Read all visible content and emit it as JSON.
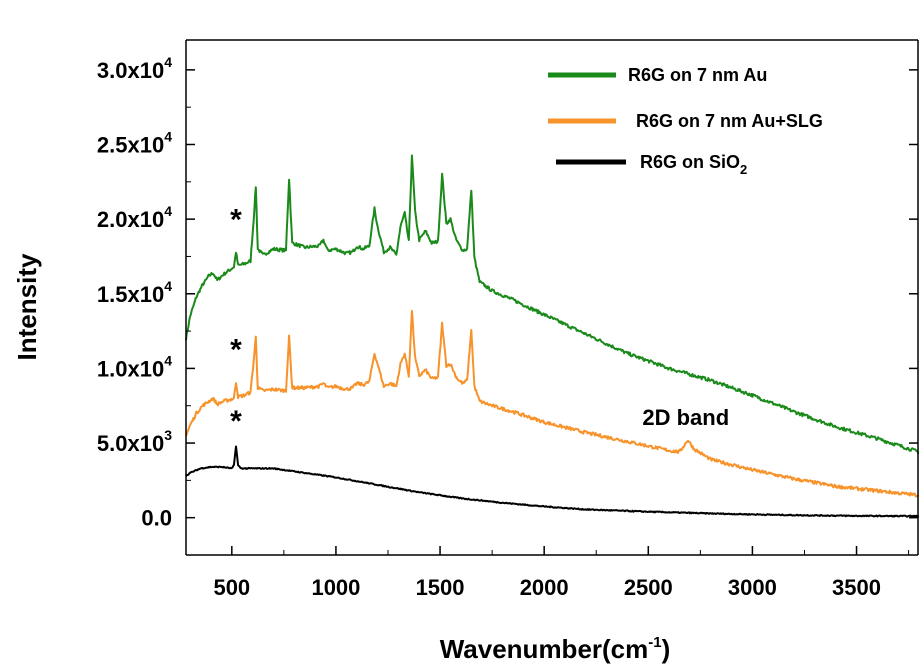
{
  "chart_data": {
    "type": "line",
    "xlabel": "Wavenumber(cm",
    "xlabel_sup": "-1",
    "xlabel_suffix": ")",
    "ylabel": "Intensity",
    "xlim": [
      280,
      3800
    ],
    "ylim": [
      -2500,
      32000
    ],
    "x_ticks": [
      500,
      1000,
      1500,
      2000,
      2500,
      3000,
      3500
    ],
    "x_tick_labels": [
      "500",
      "1000",
      "1500",
      "2000",
      "2500",
      "3000",
      "3500"
    ],
    "y_ticks": [
      0,
      5000,
      10000,
      15000,
      20000,
      25000,
      30000
    ],
    "y_tick_labels": [
      {
        "mant": "0.0",
        "exp": ""
      },
      {
        "mant": "5.0x10",
        "exp": "3"
      },
      {
        "mant": "1.0x10",
        "exp": "4"
      },
      {
        "mant": "1.5x10",
        "exp": "4"
      },
      {
        "mant": "2.0x10",
        "exp": "4"
      },
      {
        "mant": "2.5x10",
        "exp": "4"
      },
      {
        "mant": "3.0x10",
        "exp": "4"
      }
    ],
    "grid": false,
    "legend_position": "top-right",
    "series": [
      {
        "name": "R6G on  7 nm Au",
        "color": "#1a8a1a",
        "x": [
          280,
          300,
          330,
          360,
          390,
          410,
          430,
          460,
          490,
          510,
          520,
          530,
          560,
          590,
          605,
          615,
          625,
          650,
          700,
          760,
          775,
          790,
          850,
          920,
          940,
          960,
          1000,
          1050,
          1080,
          1100,
          1130,
          1160,
          1185,
          1200,
          1230,
          1260,
          1290,
          1310,
          1330,
          1350,
          1365,
          1380,
          1400,
          1430,
          1460,
          1490,
          1510,
          1530,
          1550,
          1575,
          1590,
          1610,
          1630,
          1650,
          1665,
          1690,
          1750,
          1850,
          2000,
          2200,
          2400,
          2600,
          2700,
          2800,
          3000,
          3200,
          3400,
          3600,
          3800
        ],
        "y": [
          12000,
          13500,
          14800,
          15600,
          16200,
          16400,
          15900,
          16300,
          16600,
          16800,
          17800,
          16900,
          17000,
          17200,
          20000,
          22200,
          18000,
          17600,
          18000,
          17900,
          22700,
          18400,
          18100,
          18200,
          18600,
          17900,
          18000,
          17700,
          17800,
          18200,
          18000,
          18200,
          20700,
          19500,
          17800,
          18100,
          17600,
          19500,
          20400,
          18500,
          24300,
          20500,
          18600,
          19200,
          18400,
          18500,
          23000,
          19700,
          20000,
          18700,
          18300,
          17900,
          18000,
          22000,
          17400,
          15800,
          15200,
          14600,
          13600,
          12300,
          11000,
          10000,
          9600,
          9200,
          8200,
          7100,
          6100,
          5300,
          4400
        ]
      },
      {
        "name": "R6G on 7 nm Au+SLG",
        "color": "#f7932a",
        "x": [
          280,
          300,
          330,
          360,
          390,
          410,
          430,
          460,
          490,
          510,
          520,
          530,
          560,
          590,
          605,
          615,
          625,
          650,
          700,
          760,
          775,
          790,
          850,
          920,
          940,
          960,
          1000,
          1050,
          1080,
          1100,
          1130,
          1160,
          1185,
          1200,
          1230,
          1260,
          1290,
          1310,
          1330,
          1350,
          1365,
          1380,
          1400,
          1430,
          1460,
          1490,
          1510,
          1530,
          1550,
          1575,
          1590,
          1610,
          1630,
          1650,
          1665,
          1690,
          1750,
          1850,
          2000,
          2200,
          2400,
          2600,
          2650,
          2690,
          2720,
          2800,
          3000,
          3200,
          3400,
          3600,
          3800
        ],
        "y": [
          5500,
          6200,
          7000,
          7500,
          7800,
          8000,
          7600,
          7800,
          7900,
          8000,
          9100,
          8100,
          8200,
          8400,
          10500,
          12100,
          8700,
          8500,
          8600,
          8500,
          12100,
          8700,
          8700,
          8800,
          9000,
          8700,
          8800,
          8600,
          8700,
          9000,
          8900,
          9100,
          11000,
          10300,
          8800,
          9000,
          8800,
          10300,
          11000,
          9500,
          13900,
          10700,
          9500,
          9900,
          9300,
          9400,
          13000,
          10200,
          10300,
          9500,
          9200,
          9000,
          9200,
          12600,
          8800,
          7800,
          7500,
          7100,
          6400,
          5700,
          5100,
          4500,
          4400,
          5200,
          4600,
          3900,
          3200,
          2600,
          2100,
          1800,
          1500
        ]
      },
      {
        "name": "R6G on SiO",
        "name_sub": "2",
        "color": "#000000",
        "x": [
          280,
          300,
          350,
          400,
          450,
          500,
          510,
          520,
          530,
          545,
          600,
          700,
          800,
          1000,
          1200,
          1400,
          1600,
          1800,
          2000,
          2200,
          2500,
          2800,
          3000,
          3200,
          3500,
          3800
        ],
        "y": [
          2800,
          3000,
          3300,
          3400,
          3400,
          3300,
          3500,
          4800,
          3500,
          3300,
          3300,
          3300,
          3100,
          2700,
          2200,
          1700,
          1300,
          1000,
          750,
          550,
          400,
          280,
          220,
          170,
          120,
          100
        ]
      }
    ],
    "annotations": [
      {
        "text": "*",
        "x": 520,
        "y": 19300
      },
      {
        "text": "*",
        "x": 520,
        "y": 10600
      },
      {
        "text": "*",
        "x": 520,
        "y": 5800
      },
      {
        "text": "2D band",
        "x": 2680,
        "y": 6200
      }
    ]
  }
}
